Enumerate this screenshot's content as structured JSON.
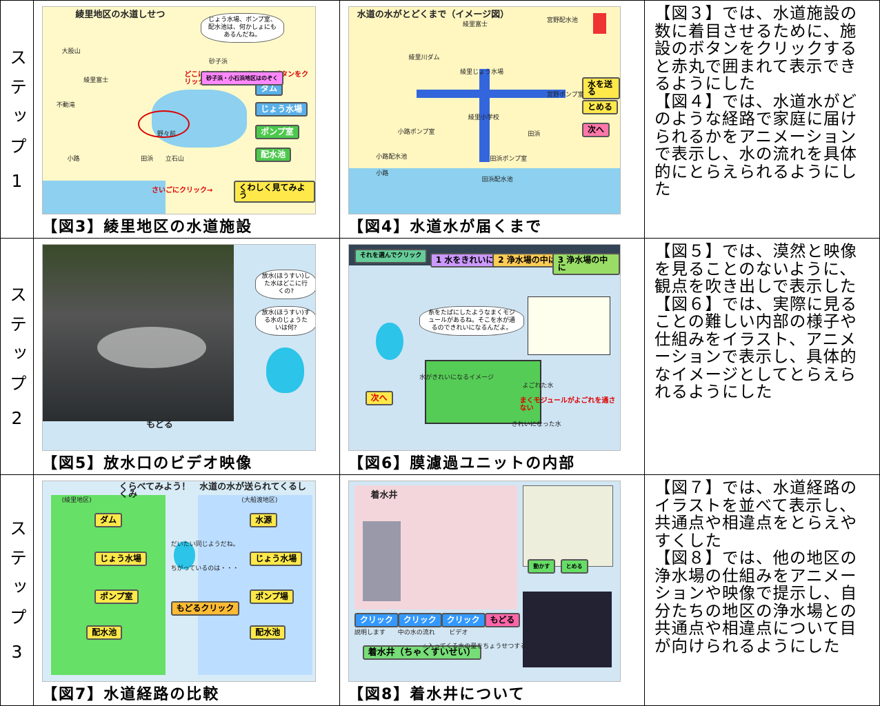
{
  "table": {
    "rows": [
      {
        "step": "ステップ",
        "number": "1",
        "figures": [
          {
            "caption": "【図3】綾里地区の水道施設",
            "texts": [
              "綾里地区の水道しせつ",
              "じょう水場、ポンプ室、配水池は、何かしょにもあるんだね。",
              "ダム",
              "じょう水場",
              "ポンプ室",
              "配水池",
              "くわしく見てみよう",
              "さいごにクリック→",
              "どこにあるかわかるよ。右のボタンをクリック→",
              "大股山",
              "綾里富士",
              "不動滝",
              "野々前",
              "立石山",
              "小路",
              "田浜",
              "砂子浜",
              "砂子浜・小石浜地区はのぞく"
            ]
          },
          {
            "caption": "【図4】水道水が届くまで",
            "texts": [
              "水道の水がとどくまで（イメージ図）",
              "水を送る",
              "とめる",
              "次へ",
              "綾里川ダム",
              "綾里じょう水場",
              "宮野配水池",
              "宮野ポンプ室",
              "綾里小学校",
              "小路ポンプ室",
              "小路配水池",
              "田浜ポンプ室",
              "田浜配水池",
              "田浜",
              "小路",
              "綾里富士"
            ]
          }
        ],
        "description": [
          "【図３】では、水道施設の数に着目させるために、施設のボタンをクリックすると赤丸で囲まれて表示できるようにした",
          "【図４】では、水道水がどのような経路で家庭に届けられるかをアニメーションで表示し、水の流れを具体的にとらえられるようにした"
        ]
      },
      {
        "step": "ステップ",
        "number": "2",
        "figures": [
          {
            "caption": "【図5】放水口のビデオ映像",
            "texts": [
              "放水(ほうすい)した水はどこに行くの?",
              "放水(ほうすい)する水のじょうたいは何?",
              "もどる"
            ]
          },
          {
            "caption": "【図6】膜濾過ユニットの内部",
            "texts": [
              "それを選んでクリック",
              "1 水をきれいに",
              "2 浄水場の中は",
              "3 浄水場の中に",
              "糸をたばにしたようなまくモジュールがあるね。そこを水が通るのできれいになるんだよ。",
              "水がきれいになるイメージ",
              "よごれた水",
              "まくモジュールがよごれを通さない",
              "きれいになった水",
              "次へ"
            ]
          }
        ],
        "description": [
          "【図５】では、漠然と映像を見ることのないように、観点を吹き出しで表示した",
          "【図６】では、実際に見ることの難しい内部の様子や仕組みをイラスト、アニメーションで表示し、具体的なイメージとしてとらえられるようにした"
        ]
      },
      {
        "step": "ステップ",
        "number": "3",
        "figures": [
          {
            "caption": "【図7】水道経路の比較",
            "texts": [
              "くらべてみよう！　水道の水が送られてくるしくみ",
              "(綾里地区)",
              "(大船渡地区)",
              "ダム",
              "じょう水場",
              "ポンプ室",
              "配水池",
              "水源",
              "じょう水場",
              "ポンプ場",
              "配水池",
              "だいたい同じようだね。",
              "ちがっているのは・・・",
              "もどるクリック"
            ]
          },
          {
            "caption": "【図8】着水井について",
            "texts": [
              "着水井",
              "クリック",
              "クリック",
              "クリック",
              "もどる",
              "説明します",
              "中の水の流れ",
              "ビデオ",
              "着水井（ちゃくすいせい）",
              "☆入ってくる水の量をちょうせつする。",
              "動かす",
              "とめる"
            ]
          }
        ],
        "description": [
          "【図７】では、水道経路のイラストを並べて表示し、共通点や相違点をとらえやすくした",
          "【図８】では、他の地区の浄水場の仕組みをアニメーションや映像で提示し、自分たちの地区の浄水場との共通点や相違点について目が向けられるようにした"
        ]
      }
    ]
  }
}
